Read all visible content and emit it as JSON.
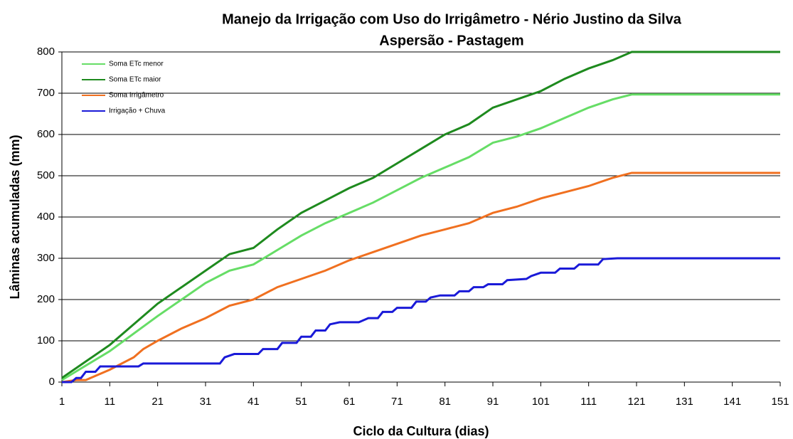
{
  "chart_data": {
    "type": "line",
    "title": "Manejo da Irrigação com Uso do Irrigâmetro - Nério Justino da Silva",
    "subtitle": "Aspersão - Pastagem",
    "x_label": "Ciclo da Cultura (dias)",
    "y_label": "Lâminas acumuladas (mm)",
    "xlim": [
      1,
      151
    ],
    "xticks": [
      1,
      11,
      21,
      31,
      41,
      51,
      61,
      71,
      81,
      91,
      101,
      111,
      121,
      131,
      141,
      151
    ],
    "ylim": [
      0,
      800
    ],
    "yticks": [
      0,
      100,
      200,
      300,
      400,
      500,
      600,
      700,
      800
    ],
    "grid": true,
    "legend": "upper left",
    "series": [
      {
        "name": "Soma ETc menor",
        "color": "#66dd66",
        "x": [
          1,
          11,
          21,
          31,
          36,
          41,
          46,
          51,
          56,
          61,
          66,
          71,
          76,
          81,
          86,
          91,
          96,
          101,
          106,
          111,
          116,
          120,
          151
        ],
        "values": [
          5,
          75,
          160,
          240,
          270,
          285,
          320,
          355,
          385,
          410,
          435,
          465,
          495,
          520,
          545,
          580,
          595,
          615,
          640,
          665,
          685,
          697,
          697
        ]
      },
      {
        "name": "Soma ETc maior",
        "color": "#1e8a1e",
        "x": [
          1,
          11,
          21,
          31,
          36,
          41,
          46,
          51,
          56,
          61,
          66,
          71,
          76,
          81,
          86,
          91,
          96,
          101,
          106,
          111,
          116,
          120,
          151
        ],
        "values": [
          10,
          90,
          190,
          270,
          310,
          325,
          370,
          410,
          440,
          470,
          495,
          530,
          565,
          600,
          625,
          665,
          685,
          705,
          735,
          760,
          780,
          800,
          800
        ]
      },
      {
        "name": "Soma Irrigâmetro",
        "color": "#f07020",
        "x": [
          1,
          4,
          6,
          11,
          16,
          18,
          21,
          26,
          31,
          36,
          41,
          46,
          51,
          56,
          61,
          66,
          71,
          76,
          81,
          86,
          91,
          96,
          101,
          106,
          111,
          116,
          120,
          151
        ],
        "values": [
          0,
          5,
          5,
          30,
          60,
          80,
          100,
          130,
          155,
          185,
          200,
          230,
          250,
          270,
          295,
          315,
          335,
          355,
          370,
          385,
          410,
          425,
          445,
          460,
          475,
          495,
          507,
          507
        ]
      },
      {
        "name": "Irrigação + Chuva",
        "color": "#1a1ad8",
        "x": [
          1,
          3,
          4,
          5,
          6,
          8,
          9,
          17,
          18,
          34,
          35,
          37,
          42,
          43,
          46,
          47,
          50,
          51,
          53,
          54,
          56,
          57,
          59,
          63,
          65,
          67,
          68,
          70,
          71,
          74,
          75,
          77,
          78,
          80,
          83,
          84,
          86,
          87,
          89,
          90,
          93,
          94,
          98,
          99,
          101,
          104,
          105,
          108,
          109,
          113,
          114,
          117,
          151
        ],
        "values": [
          0,
          0,
          10,
          10,
          25,
          25,
          38,
          38,
          45,
          45,
          60,
          68,
          68,
          80,
          80,
          95,
          95,
          110,
          110,
          125,
          125,
          140,
          145,
          145,
          155,
          155,
          170,
          170,
          180,
          180,
          195,
          195,
          205,
          210,
          210,
          220,
          220,
          230,
          230,
          237,
          237,
          247,
          250,
          257,
          265,
          265,
          275,
          275,
          285,
          285,
          298,
          300,
          300
        ]
      }
    ]
  }
}
